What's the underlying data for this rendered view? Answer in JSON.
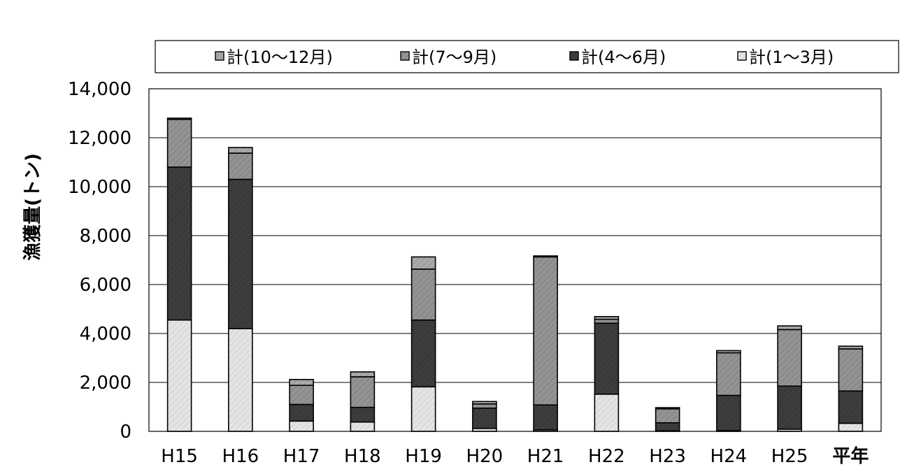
{
  "chart_data": {
    "type": "bar",
    "stacked": true,
    "title": "",
    "xlabel": "",
    "ylabel": "漁獲量(トン)",
    "ylim": [
      0,
      14000
    ],
    "yticks": [
      0,
      2000,
      4000,
      6000,
      8000,
      10000,
      12000,
      14000
    ],
    "ytick_labels": [
      "0",
      "2,000",
      "4,000",
      "6,000",
      "8,000",
      "10,000",
      "12,000",
      "14,000"
    ],
    "grid": true,
    "legend_position": "top",
    "categories": [
      "H15",
      "H16",
      "H17",
      "H18",
      "H19",
      "H20",
      "H21",
      "H22",
      "H23",
      "H24",
      "H25",
      "平年"
    ],
    "series": [
      {
        "name": "計(1～3月)",
        "color": "#e4e4e4",
        "values": [
          4550,
          4200,
          420,
          380,
          1820,
          120,
          60,
          1520,
          20,
          30,
          90,
          330
        ]
      },
      {
        "name": "計(4～6月)",
        "color": "#3d3d3d",
        "values": [
          6250,
          6100,
          680,
          600,
          2730,
          830,
          1020,
          2900,
          330,
          1440,
          1760,
          1320
        ]
      },
      {
        "name": "計(7～9月)",
        "color": "#909090",
        "values": [
          1950,
          1070,
          780,
          1250,
          2080,
          170,
          6050,
          160,
          570,
          1740,
          2310,
          1720
        ]
      },
      {
        "name": "計(10～12月)",
        "color": "#a6a6a6",
        "values": [
          50,
          230,
          240,
          200,
          500,
          100,
          40,
          110,
          50,
          90,
          150,
          110
        ]
      }
    ],
    "legend_order": [
      "計(10～12月)",
      "計(7～9月)",
      "計(4～6月)",
      "計(1～3月)"
    ]
  }
}
